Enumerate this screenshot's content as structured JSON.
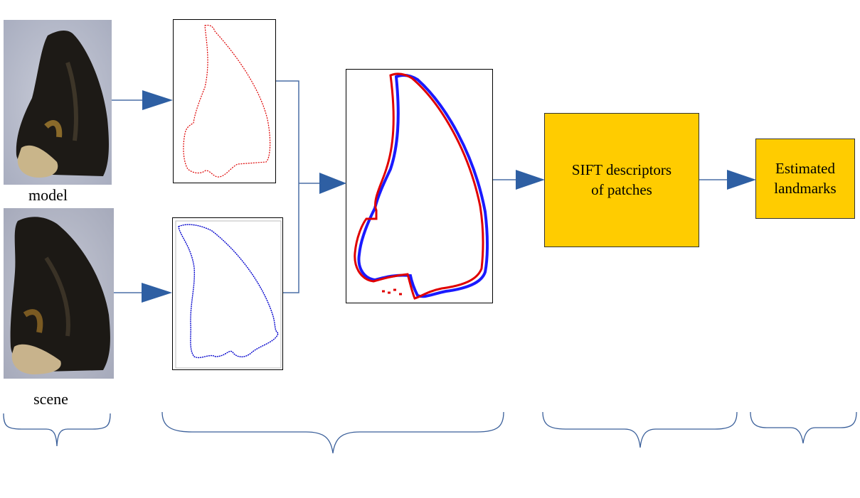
{
  "labels": {
    "model": "model",
    "scene": "scene"
  },
  "steps": {
    "sift_line1": "SIFT descriptors",
    "sift_line2": "of patches",
    "landmarks_line1": "Estimated",
    "landmarks_line2": "landmarks"
  },
  "colors": {
    "arrow": "#2e5fa3",
    "line": "#4a6fa5",
    "brace": "#3a5f9a",
    "step_box": "#ffcc00",
    "model_contour": "#dd0000",
    "scene_contour": "#0000cc"
  }
}
